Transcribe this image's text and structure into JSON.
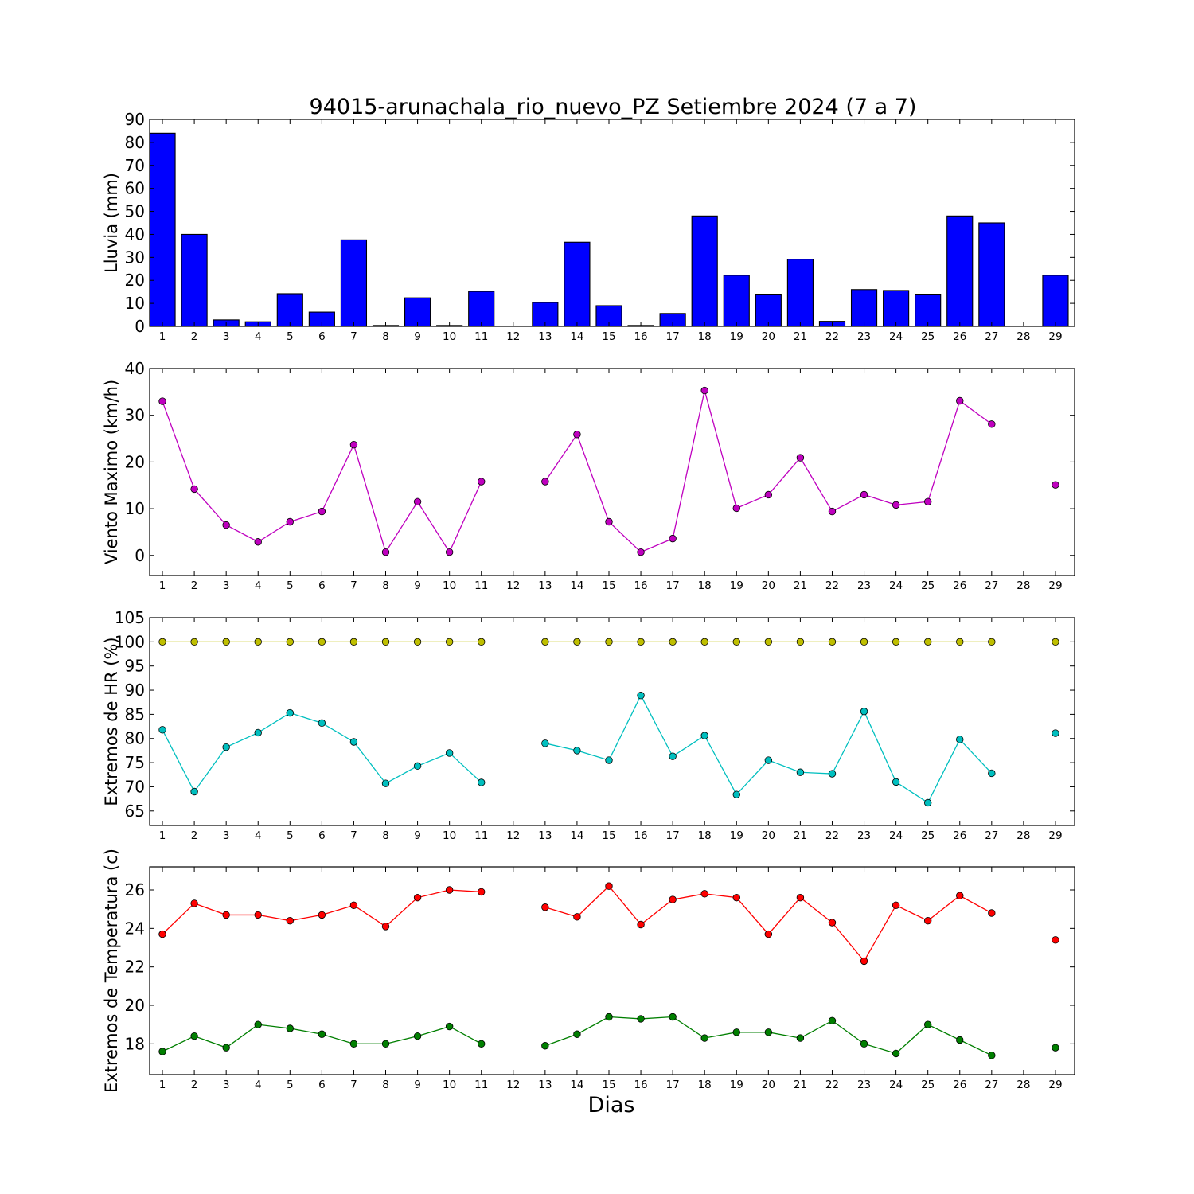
{
  "title": "94015-arunachala_rio_nuevo_PZ Setiembre 2024  (7 a 7)",
  "xlabel": "Dias",
  "chart_data": [
    {
      "type": "bar",
      "ylabel": "Lluvia (mm)",
      "ylim": [
        0,
        90
      ],
      "yticks": [
        0,
        10,
        20,
        30,
        40,
        50,
        60,
        70,
        80,
        90
      ],
      "x": [
        1,
        2,
        3,
        4,
        5,
        6,
        7,
        8,
        9,
        10,
        11,
        12,
        13,
        14,
        15,
        16,
        17,
        18,
        19,
        20,
        21,
        22,
        23,
        24,
        25,
        26,
        27,
        28,
        29
      ],
      "series": [
        {
          "color": "#0000ff",
          "values": [
            84,
            40,
            2.8,
            2,
            14.2,
            6.2,
            37.6,
            0.4,
            12.4,
            0.4,
            15.2,
            null,
            10.4,
            36.6,
            9,
            0.4,
            5.6,
            48,
            22.2,
            14,
            29.2,
            2.2,
            16,
            15.6,
            14,
            48,
            45,
            null,
            22.2
          ]
        }
      ]
    },
    {
      "type": "line",
      "ylabel": "Viento Maximo (km/h)",
      "ylim": [
        -4.3,
        40
      ],
      "yticks": [
        0,
        10,
        20,
        30,
        40
      ],
      "x": [
        1,
        2,
        3,
        4,
        5,
        6,
        7,
        8,
        9,
        10,
        11,
        12,
        13,
        14,
        15,
        16,
        17,
        18,
        19,
        20,
        21,
        22,
        23,
        24,
        25,
        26,
        27,
        28,
        29
      ],
      "series": [
        {
          "color": "#bf00bf",
          "values": [
            33,
            14.2,
            6.5,
            2.9,
            7.2,
            9.4,
            23.7,
            0.7,
            11.5,
            0.7,
            15.8,
            null,
            15.8,
            25.9,
            7.2,
            0.7,
            3.6,
            35.3,
            10.1,
            13,
            20.9,
            9.4,
            13,
            10.8,
            11.5,
            33.1,
            28.1,
            null,
            15.1
          ]
        }
      ]
    },
    {
      "type": "line",
      "ylabel": "Extremos de HR (%)",
      "ylim": [
        62,
        105
      ],
      "yticks": [
        65,
        70,
        75,
        80,
        85,
        90,
        95,
        100,
        105
      ],
      "x": [
        1,
        2,
        3,
        4,
        5,
        6,
        7,
        8,
        9,
        10,
        11,
        12,
        13,
        14,
        15,
        16,
        17,
        18,
        19,
        20,
        21,
        22,
        23,
        24,
        25,
        26,
        27,
        28,
        29
      ],
      "series": [
        {
          "color": "#bfbf00",
          "values": [
            100,
            100,
            100,
            100,
            100,
            100,
            100,
            100,
            100,
            100,
            100,
            null,
            100,
            100,
            100,
            100,
            100,
            100,
            100,
            100,
            100,
            100,
            100,
            100,
            100,
            100,
            100,
            null,
            100
          ]
        },
        {
          "color": "#00bfbf",
          "values": [
            81.8,
            69,
            78.2,
            81.2,
            85.3,
            83.2,
            79.3,
            70.7,
            74.3,
            77,
            70.9,
            null,
            79,
            77.5,
            75.5,
            88.9,
            76.3,
            80.6,
            68.4,
            75.5,
            73,
            72.7,
            85.6,
            71,
            66.7,
            79.8,
            72.8,
            null,
            81.1
          ]
        }
      ]
    },
    {
      "type": "line",
      "ylabel": "Extremos de Temperatura (c)",
      "ylim": [
        16.4,
        27.2
      ],
      "yticks": [
        18,
        20,
        22,
        24,
        26
      ],
      "x": [
        1,
        2,
        3,
        4,
        5,
        6,
        7,
        8,
        9,
        10,
        11,
        12,
        13,
        14,
        15,
        16,
        17,
        18,
        19,
        20,
        21,
        22,
        23,
        24,
        25,
        26,
        27,
        28,
        29
      ],
      "series": [
        {
          "color": "#ff0000",
          "values": [
            23.7,
            25.3,
            24.7,
            24.7,
            24.4,
            24.7,
            25.2,
            24.1,
            25.6,
            26,
            25.9,
            null,
            25.1,
            24.6,
            26.2,
            24.2,
            25.5,
            25.8,
            25.6,
            23.7,
            25.6,
            24.3,
            22.3,
            25.2,
            24.4,
            25.7,
            24.8,
            null,
            23.4
          ]
        },
        {
          "color": "#007f00",
          "values": [
            17.6,
            18.4,
            17.8,
            19,
            18.8,
            18.5,
            18,
            18,
            18.4,
            18.9,
            18,
            null,
            17.9,
            18.5,
            19.4,
            19.3,
            19.4,
            18.3,
            18.6,
            18.6,
            18.3,
            19.2,
            18,
            17.5,
            19,
            18.2,
            17.4,
            null,
            17.8
          ]
        }
      ]
    }
  ]
}
